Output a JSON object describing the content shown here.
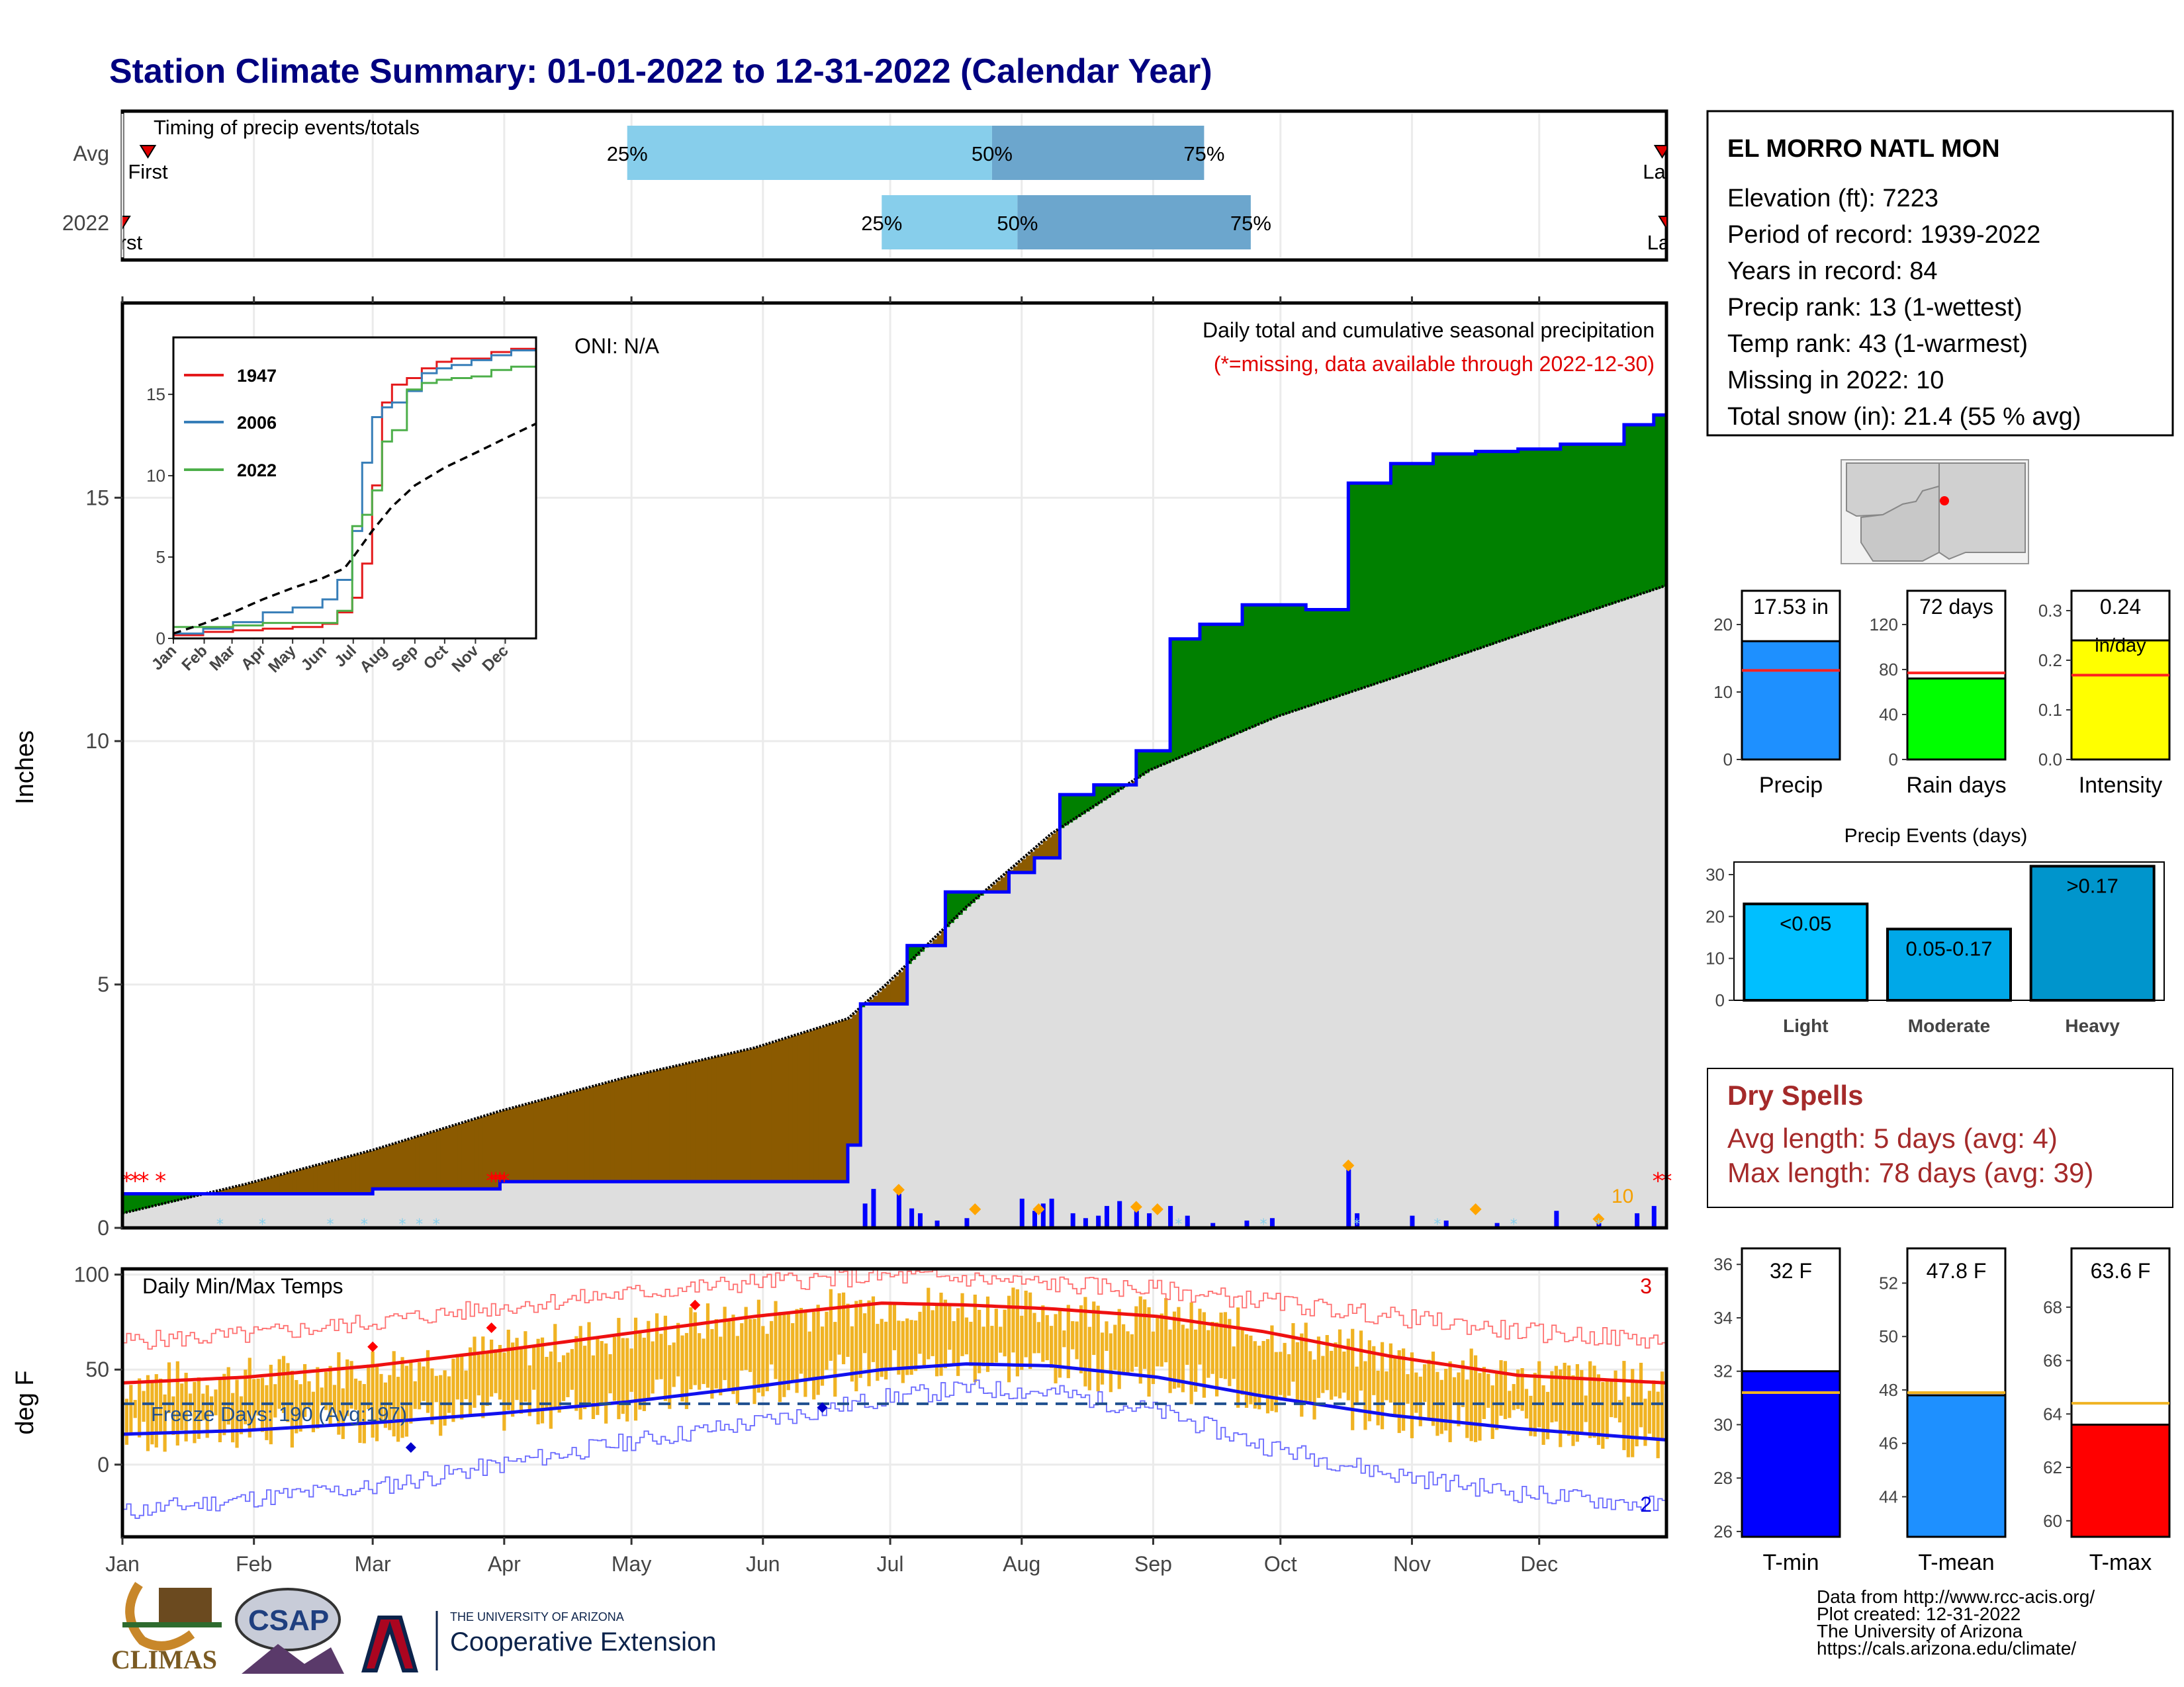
{
  "title": "Station Climate Summary: 01-01-2022 to 12-31-2022 (Calendar Year)",
  "months": [
    "Jan",
    "Feb",
    "Mar",
    "Apr",
    "May",
    "Jun",
    "Jul",
    "Aug",
    "Sep",
    "Oct",
    "Nov",
    "Dec"
  ],
  "timing": {
    "title": "Timing of precip events/totals",
    "rows": [
      {
        "label": "Avg",
        "first_label": "First",
        "last_label": "Last",
        "p25": "25%",
        "p50": "50%",
        "p75": "75%"
      },
      {
        "label": "2022",
        "first_label": "First",
        "last_label": "Last",
        "p25": "25%",
        "p50": "50%",
        "p75": "75%"
      }
    ]
  },
  "chart_data": [
    {
      "type": "bar",
      "id": "timing",
      "title": "Timing of precip events/totals",
      "x_unit": "day of year",
      "categories": [
        "Avg",
        "2022"
      ],
      "first_day": [
        7,
        1
      ],
      "last_day": [
        364,
        365
      ],
      "p25_day": [
        120,
        180
      ],
      "p50_day": [
        206,
        212
      ],
      "p75_day": [
        256,
        267
      ],
      "xlim": [
        1,
        365
      ]
    },
    {
      "type": "area",
      "id": "precip",
      "ylabel": "Inches",
      "ylim": [
        0,
        19
      ],
      "yticks": [
        0,
        5,
        10,
        15
      ],
      "annotation_oni": "ONI: N/A",
      "annotation_title": "Daily total and cumulative seasonal precipitation",
      "annotation_missing": "(*=missing, data available through 2022-12-30)",
      "missing_count_label": "10",
      "series": [
        {
          "name": "avg_cumulative",
          "x": [
            1,
            30,
            60,
            90,
            120,
            150,
            172,
            181,
            200,
            220,
            243,
            273,
            304,
            334,
            365
          ],
          "values": [
            0.3,
            0.9,
            1.6,
            2.4,
            3.1,
            3.7,
            4.3,
            5.0,
            6.6,
            8.1,
            9.4,
            10.5,
            11.4,
            12.3,
            13.2
          ]
        },
        {
          "name": "cumulative_2022",
          "x": [
            1,
            20,
            45,
            60,
            90,
            100,
            120,
            150,
            172,
            175,
            180,
            186,
            195,
            204,
            210,
            216,
            222,
            230,
            240,
            248,
            255,
            265,
            280,
            290,
            300,
            310,
            320,
            330,
            340,
            355,
            362,
            365
          ],
          "values": [
            0.7,
            0.7,
            0.7,
            0.8,
            0.95,
            0.95,
            0.95,
            0.95,
            1.7,
            4.6,
            4.6,
            5.8,
            6.9,
            6.9,
            7.3,
            7.6,
            8.9,
            9.1,
            9.8,
            12.1,
            12.4,
            12.8,
            12.7,
            15.3,
            15.7,
            15.9,
            15.95,
            16.0,
            16.1,
            16.5,
            16.7,
            17.53
          ]
        }
      ],
      "daily_x": [
        176,
        178,
        184,
        187,
        189,
        193,
        200,
        213,
        216,
        218,
        220,
        225,
        228,
        231,
        233,
        236,
        240,
        243,
        248,
        252,
        258,
        266,
        272,
        290,
        292,
        305,
        313,
        325,
        339,
        349,
        358,
        362
      ],
      "daily_values": [
        0.5,
        0.8,
        0.7,
        0.4,
        0.3,
        0.15,
        0.2,
        0.6,
        0.35,
        0.5,
        0.6,
        0.3,
        0.2,
        0.25,
        0.45,
        0.55,
        0.35,
        0.3,
        0.45,
        0.25,
        0.1,
        0.15,
        0.2,
        1.2,
        0.3,
        0.25,
        0.15,
        0.1,
        0.35,
        0.1,
        0.3,
        0.45
      ],
      "flagged_x": [
        184,
        202,
        217,
        240,
        245,
        290,
        320,
        349
      ],
      "missing_x": [
        2,
        4,
        6,
        10,
        88,
        89,
        90,
        91,
        363,
        365
      ],
      "snow_x": [
        24,
        34,
        50,
        58,
        67,
        71,
        75,
        250,
        270,
        292,
        311,
        329,
        349
      ]
    },
    {
      "type": "line",
      "id": "temps",
      "ylabel": "deg F",
      "ylim": [
        -38,
        103
      ],
      "yticks": [
        0,
        50,
        100
      ],
      "title": "Daily Min/Max Temps",
      "freeze_label": "Freeze Days: 190 (Avg:197)",
      "freeze_line": 32,
      "count_max_label": "3",
      "count_min_label": "2",
      "series": [
        {
          "name": "avg_max",
          "x": [
            1,
            30,
            60,
            90,
            120,
            150,
            180,
            200,
            220,
            245,
            270,
            300,
            330,
            365
          ],
          "values": [
            43,
            46,
            52,
            60,
            69,
            78,
            85,
            84,
            82,
            78,
            70,
            57,
            47,
            43
          ]
        },
        {
          "name": "avg_min",
          "x": [
            1,
            30,
            60,
            90,
            120,
            150,
            180,
            200,
            220,
            245,
            270,
            300,
            330,
            365
          ],
          "values": [
            16,
            18,
            22,
            27,
            33,
            41,
            50,
            53,
            52,
            46,
            36,
            26,
            19,
            13
          ]
        },
        {
          "name": "record_max",
          "x": [
            1,
            30,
            60,
            90,
            120,
            150,
            180,
            200,
            220,
            245,
            270,
            300,
            330,
            365
          ],
          "values": [
            65,
            68,
            75,
            83,
            90,
            96,
            99,
            98,
            95,
            92,
            86,
            78,
            70,
            65
          ]
        },
        {
          "name": "record_min",
          "x": [
            1,
            30,
            60,
            90,
            120,
            150,
            180,
            200,
            220,
            245,
            270,
            300,
            330,
            365
          ],
          "values": [
            -25,
            -18,
            -12,
            0,
            12,
            22,
            35,
            40,
            38,
            28,
            10,
            -5,
            -15,
            -22
          ]
        }
      ],
      "record_high_x": [
        60,
        88,
        136
      ],
      "record_high_values": [
        62,
        72,
        84
      ],
      "record_low_x": [
        69,
        166
      ],
      "record_low_values": [
        9,
        30
      ]
    },
    {
      "type": "table",
      "id": "station",
      "station_name": "EL MORRO NATL MON",
      "lines": [
        "Elevation (ft): 7223",
        "Period of record: 1939-2022",
        "Years in record: 84",
        "Precip rank: 13 (1-wettest)",
        "Temp rank: 43 (1-warmest)",
        "Missing in 2022: 10",
        "Total snow (in): 21.4 (55 % avg)"
      ]
    },
    {
      "type": "line",
      "id": "inset",
      "ylim": [
        0,
        18.5
      ],
      "yticks": [
        0,
        5,
        10,
        15
      ],
      "series": [
        {
          "name": "1947",
          "color": "#e41a1c",
          "x": [
            0,
            30,
            60,
            90,
            120,
            150,
            165,
            180,
            190,
            200,
            210,
            220,
            235,
            250,
            265,
            280,
            300,
            320,
            340,
            365
          ],
          "values": [
            0.2,
            0.4,
            0.5,
            0.6,
            0.7,
            0.9,
            1.6,
            2.5,
            4.6,
            9.4,
            14.5,
            15.6,
            16.0,
            16.6,
            17.0,
            17.2,
            17.2,
            17.6,
            17.8,
            18.4
          ]
        },
        {
          "name": "2006",
          "color": "#377eb8",
          "x": [
            0,
            30,
            60,
            90,
            120,
            150,
            165,
            180,
            190,
            200,
            210,
            220,
            235,
            250,
            265,
            280,
            300,
            320,
            340,
            365
          ],
          "values": [
            0.3,
            0.6,
            1.0,
            1.6,
            1.9,
            2.4,
            3.6,
            6.6,
            10.8,
            13.6,
            14.2,
            14.5,
            15.2,
            16.3,
            16.6,
            16.8,
            17.1,
            17.4,
            17.7,
            18.2
          ]
        },
        {
          "name": "2022",
          "color": "#4daf4a",
          "x": [
            0,
            30,
            60,
            90,
            120,
            150,
            165,
            180,
            190,
            200,
            210,
            220,
            235,
            250,
            265,
            280,
            300,
            320,
            340,
            365
          ],
          "values": [
            0.7,
            0.7,
            0.8,
            0.95,
            0.95,
            0.95,
            1.7,
            6.9,
            7.6,
            9.1,
            12.1,
            12.8,
            15.3,
            15.7,
            15.9,
            16.0,
            16.1,
            16.5,
            16.7,
            17.53
          ]
        },
        {
          "name": "average",
          "color": "#000000",
          "x": [
            0,
            30,
            60,
            90,
            120,
            150,
            172,
            181,
            200,
            220,
            243,
            273,
            304,
            334,
            365
          ],
          "values": [
            0.3,
            0.9,
            1.6,
            2.4,
            3.1,
            3.7,
            4.3,
            5.0,
            6.6,
            8.1,
            9.4,
            10.5,
            11.4,
            12.3,
            13.2
          ]
        }
      ],
      "legend_labels": [
        "1947",
        "2006",
        "2022"
      ]
    },
    {
      "type": "bar",
      "id": "totals",
      "panels": [
        {
          "label": "Precip",
          "value": 17.53,
          "value_label": "17.53 in",
          "avg": 13.2,
          "ylim": [
            0,
            25
          ],
          "yticks": [
            0,
            10,
            20
          ],
          "color": "#1e90ff"
        },
        {
          "label": "Rain days",
          "value": 72,
          "value_label": "72 days",
          "avg": 77,
          "ylim": [
            0,
            150
          ],
          "yticks": [
            0,
            40,
            80,
            120
          ],
          "color": "#00ff00"
        },
        {
          "label": "Intensity",
          "value": 0.24,
          "value_label": "0.24",
          "value_sublabel": "in/day",
          "avg": 0.17,
          "ylim": [
            0,
            0.34
          ],
          "yticks": [
            "0.0",
            "0.1",
            "0.2",
            "0.3"
          ],
          "color": "#ffff00"
        }
      ]
    },
    {
      "type": "bar",
      "id": "events",
      "title": "Precip Events (days)",
      "categories": [
        "Light",
        "Moderate",
        "Heavy"
      ],
      "bar_labels": [
        "<0.05",
        "0.05-0.17",
        ">0.17"
      ],
      "values": [
        23,
        17,
        32
      ],
      "ylim": [
        0,
        33
      ],
      "yticks": [
        0,
        10,
        20,
        30
      ]
    },
    {
      "type": "table",
      "id": "dryspells",
      "title": "Dry Spells",
      "lines": [
        "Avg length: 5 days (avg: 4)",
        "Max length: 78 days (avg: 39)"
      ]
    },
    {
      "type": "bar",
      "id": "tempbars",
      "panels": [
        {
          "label": "T-min",
          "value": 32.0,
          "value_label": "32 F",
          "avg": 31.2,
          "ylim": [
            25.8,
            36.6
          ],
          "yticks": [
            26,
            28,
            30,
            32,
            34,
            36
          ],
          "color": "#0000ff"
        },
        {
          "label": "T-mean",
          "value": 47.8,
          "value_label": "47.8 F",
          "avg": 47.9,
          "ylim": [
            42.5,
            53.3
          ],
          "yticks": [
            44,
            46,
            48,
            50,
            52
          ],
          "color": "#1e90ff"
        },
        {
          "label": "T-max",
          "value": 63.6,
          "value_label": "63.6 F",
          "avg": 64.4,
          "ylim": [
            59.4,
            70.2
          ],
          "yticks": [
            60,
            62,
            64,
            66,
            68
          ],
          "color": "#ff0000"
        }
      ]
    }
  ],
  "logos": {
    "climas": "CLIMAS",
    "csap": "CSAP",
    "ua_small": "THE UNIVERSITY OF ARIZONA",
    "ua_big": "Cooperative Extension"
  },
  "footer": [
    "Data from http://www.rcc-acis.org/",
    "Plot created: 12-31-2022",
    "The University of Arizona",
    "https://cals.arizona.edu/climate/"
  ]
}
